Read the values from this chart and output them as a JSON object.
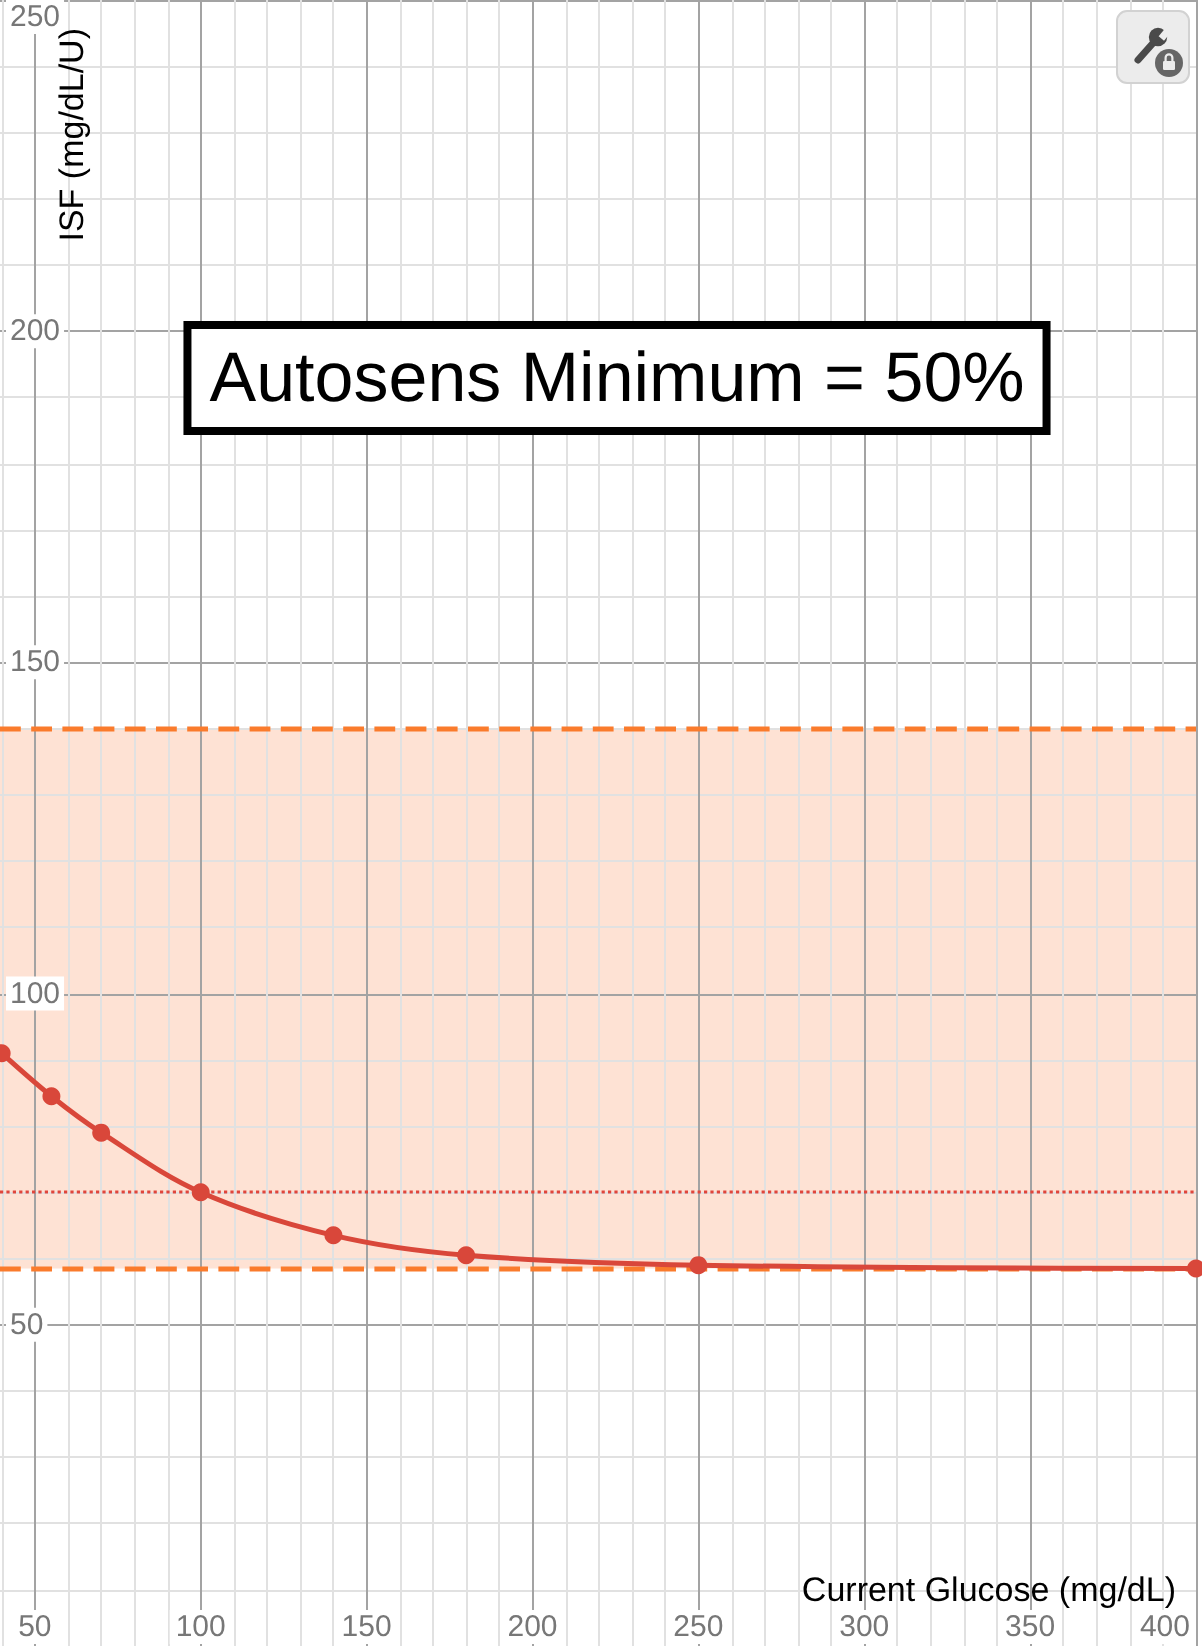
{
  "chart_data": {
    "type": "line",
    "xlabel": "Current Glucose (mg/dL)",
    "ylabel": "ISF (mg/dL/U)",
    "annotations": [
      "Autosens Minimum = 50%"
    ],
    "x": [
      40,
      55,
      70,
      100,
      140,
      180,
      250,
      400
    ],
    "series": [
      {
        "color": "#d9473a",
        "values": [
          91,
          84.5,
          79,
          70,
          63.5,
          60.5,
          59,
          58.5
        ]
      }
    ],
    "marker": "circle",
    "xlim": [
      39.5,
      400
    ],
    "ylim": [
      1.5,
      250
    ],
    "xticks": [
      {
        "value": 40,
        "label": null
      },
      50,
      {
        "value": 60,
        "label": null
      },
      {
        "value": 70,
        "label": null
      },
      {
        "value": 80,
        "label": null
      },
      {
        "value": 90,
        "label": null
      },
      100,
      {
        "value": 110,
        "label": null
      },
      {
        "value": 120,
        "label": null
      },
      {
        "value": 130,
        "label": null
      },
      {
        "value": 140,
        "label": null
      },
      150,
      {
        "value": 160,
        "label": null
      },
      {
        "value": 170,
        "label": null
      },
      {
        "value": 180,
        "label": null
      },
      {
        "value": 190,
        "label": null
      },
      200,
      {
        "value": 210,
        "label": null
      },
      {
        "value": 220,
        "label": null
      },
      {
        "value": 230,
        "label": null
      },
      {
        "value": 240,
        "label": null
      },
      250,
      {
        "value": 260,
        "label": null
      },
      {
        "value": 270,
        "label": null
      },
      {
        "value": 280,
        "label": null
      },
      {
        "value": 290,
        "label": null
      },
      300,
      {
        "value": 310,
        "label": null
      },
      {
        "value": 320,
        "label": null
      },
      {
        "value": 330,
        "label": null
      },
      {
        "value": 340,
        "label": null
      },
      350,
      {
        "value": 360,
        "label": null
      },
      {
        "value": 370,
        "label": null
      },
      {
        "value": 380,
        "label": null
      },
      {
        "value": 390,
        "label": null
      },
      400
    ],
    "yticks": [
      {
        "value": 10,
        "label": null
      },
      {
        "value": 20,
        "label": null
      },
      {
        "value": 30,
        "label": null
      },
      {
        "value": 40,
        "label": null
      },
      50,
      {
        "value": 60,
        "label": null
      },
      {
        "value": 70,
        "label": null
      },
      {
        "value": 80,
        "label": null
      },
      {
        "value": 90,
        "label": null
      },
      100,
      {
        "value": 110,
        "label": null
      },
      {
        "value": 120,
        "label": null
      },
      {
        "value": 130,
        "label": null
      },
      {
        "value": 140,
        "label": null
      },
      150,
      {
        "value": 160,
        "label": null
      },
      {
        "value": 170,
        "label": null
      },
      {
        "value": 180,
        "label": null
      },
      {
        "value": 190,
        "label": null
      },
      200,
      {
        "value": 210,
        "label": null
      },
      {
        "value": 220,
        "label": null
      },
      {
        "value": 230,
        "label": null
      },
      {
        "value": 240,
        "label": null
      },
      250
    ],
    "grid": true,
    "bands": [
      {
        "axis": "y",
        "from": 58.5,
        "to": 140,
        "color": "#fee2d4"
      }
    ],
    "ref_lines": [
      {
        "axis": "y",
        "value": 140,
        "color": "#fa7b2c",
        "line_style": "dashed"
      },
      {
        "axis": "y",
        "value": 58.5,
        "color": "#fa7b2c",
        "line_style": "dashed"
      },
      {
        "axis": "y",
        "value": 70,
        "color": "#e0463c",
        "line_style": "dotted"
      }
    ]
  }
}
